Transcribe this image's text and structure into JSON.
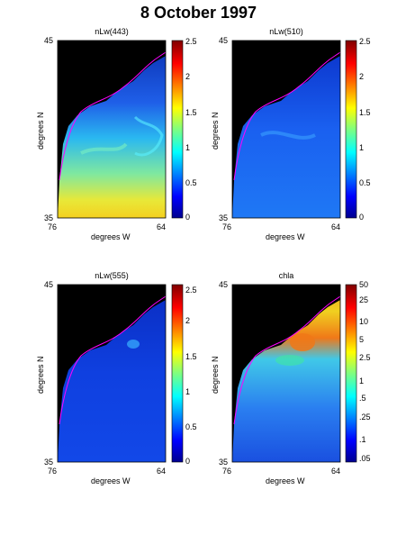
{
  "figure": {
    "title": "8 October 1997"
  },
  "panels": [
    {
      "title": "nLw(443)",
      "lat_top": "45",
      "lat_bottom": "35",
      "lon_left": "76",
      "lon_right": "64",
      "xlabel": "degrees W",
      "ylabel": "degrees N",
      "colorbar": {
        "ticks": [
          "2.5",
          "2",
          "1.5",
          "1",
          "0.5",
          "0"
        ]
      }
    },
    {
      "title": "nLw(510)",
      "lat_top": "45",
      "lat_bottom": "35",
      "lon_left": "76",
      "lon_right": "64",
      "xlabel": "degrees W",
      "ylabel": "degrees N",
      "colorbar": {
        "ticks": [
          "2.5",
          "2",
          "1.5",
          "1",
          "0.5",
          "0"
        ]
      }
    },
    {
      "title": "nLw(555)",
      "lat_top": "45",
      "lat_bottom": "35",
      "lon_left": "76",
      "lon_right": "64",
      "xlabel": "degrees W",
      "ylabel": "degrees N",
      "colorbar": {
        "ticks": [
          "2.5",
          "2",
          "1.5",
          "1",
          "0.5",
          "0"
        ]
      }
    },
    {
      "title": "chla",
      "lat_top": "45",
      "lat_bottom": "35",
      "lon_left": "76",
      "lon_right": "64",
      "xlabel": "degrees W",
      "ylabel": "degrees N",
      "colorbar": {
        "ticks": [
          "50",
          "25",
          "10",
          "5",
          "2.5",
          "1",
          ".5",
          ".25",
          ".1",
          ".05"
        ]
      }
    }
  ],
  "colors": {
    "land": "#000000",
    "coast": "#ff00ff",
    "background": "#ffffff"
  }
}
